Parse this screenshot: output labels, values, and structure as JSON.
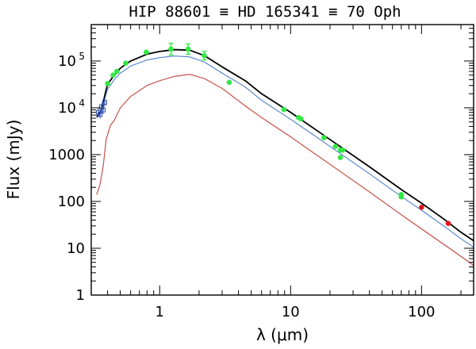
{
  "chart_data": {
    "type": "line",
    "title": "HIP 88601 ≡ HD 165341 ≡ 70 Oph",
    "xlabel": "λ (μm)",
    "ylabel": "Flux (mJy)",
    "xscale": "log",
    "yscale": "log",
    "xlim": [
      0.3,
      250
    ],
    "ylim": [
      1,
      600000
    ],
    "x_ticks": [
      {
        "value": 1,
        "label": "1"
      },
      {
        "value": 10,
        "label": "10"
      },
      {
        "value": 100,
        "label": "100"
      }
    ],
    "y_ticks": [
      {
        "value": 1,
        "label": "1"
      },
      {
        "value": 10,
        "label": "10"
      },
      {
        "value": 100,
        "label": "100"
      },
      {
        "value": 1000,
        "label": "1000"
      },
      {
        "value": 10000,
        "label": "10",
        "exp": "4"
      },
      {
        "value": 100000,
        "label": "10",
        "exp": "5"
      }
    ],
    "grid": false,
    "series": [
      {
        "color": "#000000",
        "style": "solid",
        "points": [
          [
            0.33,
            6500
          ],
          [
            0.36,
            9000
          ],
          [
            0.38,
            18000
          ],
          [
            0.4,
            32000
          ],
          [
            0.45,
            50000
          ],
          [
            0.5,
            70000
          ],
          [
            0.6,
            100000
          ],
          [
            0.8,
            140000
          ],
          [
            1.0,
            160000
          ],
          [
            1.3,
            175000
          ],
          [
            1.7,
            170000
          ],
          [
            2.2,
            130000
          ],
          [
            3.0,
            75000
          ],
          [
            4.5,
            38000
          ],
          [
            6,
            20000
          ],
          [
            10,
            8000
          ],
          [
            20,
            2100
          ],
          [
            40,
            550
          ],
          [
            70,
            180
          ],
          [
            100,
            92
          ],
          [
            150,
            41
          ],
          [
            200,
            22
          ],
          [
            250,
            14.5
          ]
        ]
      },
      {
        "color": "#4f81c9",
        "style": "solid",
        "points": [
          [
            0.33,
            6000
          ],
          [
            0.36,
            8000
          ],
          [
            0.38,
            15000
          ],
          [
            0.4,
            25000
          ],
          [
            0.45,
            40000
          ],
          [
            0.5,
            55000
          ],
          [
            0.6,
            78000
          ],
          [
            0.8,
            105000
          ],
          [
            1.0,
            118000
          ],
          [
            1.3,
            128000
          ],
          [
            1.7,
            122000
          ],
          [
            2.2,
            95000
          ],
          [
            3.0,
            55000
          ],
          [
            4.5,
            28000
          ],
          [
            6,
            14500
          ],
          [
            10,
            5700
          ],
          [
            20,
            1500
          ],
          [
            40,
            390
          ],
          [
            70,
            128
          ],
          [
            100,
            65
          ],
          [
            150,
            29
          ],
          [
            200,
            16
          ],
          [
            250,
            10.5
          ]
        ]
      },
      {
        "color": "#c1443a",
        "style": "solid",
        "points": [
          [
            0.33,
            140
          ],
          [
            0.35,
            230
          ],
          [
            0.37,
            560
          ],
          [
            0.39,
            2100
          ],
          [
            0.42,
            4200
          ],
          [
            0.45,
            5400
          ],
          [
            0.5,
            10000
          ],
          [
            0.6,
            17500
          ],
          [
            0.8,
            30000
          ],
          [
            1.0,
            38000
          ],
          [
            1.3,
            47000
          ],
          [
            1.7,
            52000
          ],
          [
            2.2,
            42000
          ],
          [
            3.0,
            26000
          ],
          [
            4.5,
            11000
          ],
          [
            6,
            6200
          ],
          [
            10,
            2400
          ],
          [
            20,
            620
          ],
          [
            40,
            160
          ],
          [
            70,
            52
          ],
          [
            100,
            26
          ],
          [
            150,
            11.8
          ],
          [
            200,
            6.7
          ],
          [
            250,
            4.3
          ]
        ]
      }
    ],
    "points_green": [
      {
        "x": 0.4,
        "y": 33000
      },
      {
        "x": 0.44,
        "y": 50000
      },
      {
        "x": 0.47,
        "y": 60000
      },
      {
        "x": 0.55,
        "y": 90000
      },
      {
        "x": 0.79,
        "y": 155000
      },
      {
        "x": 1.22,
        "y": 180000,
        "err": 0.25
      },
      {
        "x": 1.65,
        "y": 180000,
        "err": 0.22
      },
      {
        "x": 2.19,
        "y": 130000,
        "err": 0.18
      },
      {
        "x": 3.4,
        "y": 35000
      },
      {
        "x": 8.9,
        "y": 9200
      },
      {
        "x": 11.5,
        "y": 6200
      },
      {
        "x": 12,
        "y": 5800
      },
      {
        "x": 18,
        "y": 2300
      },
      {
        "x": 22,
        "y": 1500
      },
      {
        "x": 24,
        "y": 1250
      },
      {
        "x": 25,
        "y": 1250
      },
      {
        "x": 24,
        "y": 870
      },
      {
        "x": 70,
        "y": 140
      },
      {
        "x": 70,
        "y": 125
      }
    ],
    "points_red": [
      {
        "x": 100,
        "y": 75
      },
      {
        "x": 160,
        "y": 34
      }
    ],
    "points_blue": [
      {
        "x": 0.34,
        "y": 8000
      },
      {
        "x": 0.35,
        "y": 7200
      },
      {
        "x": 0.36,
        "y": 10500
      },
      {
        "x": 0.37,
        "y": 9000
      },
      {
        "x": 0.38,
        "y": 13000
      }
    ]
  }
}
